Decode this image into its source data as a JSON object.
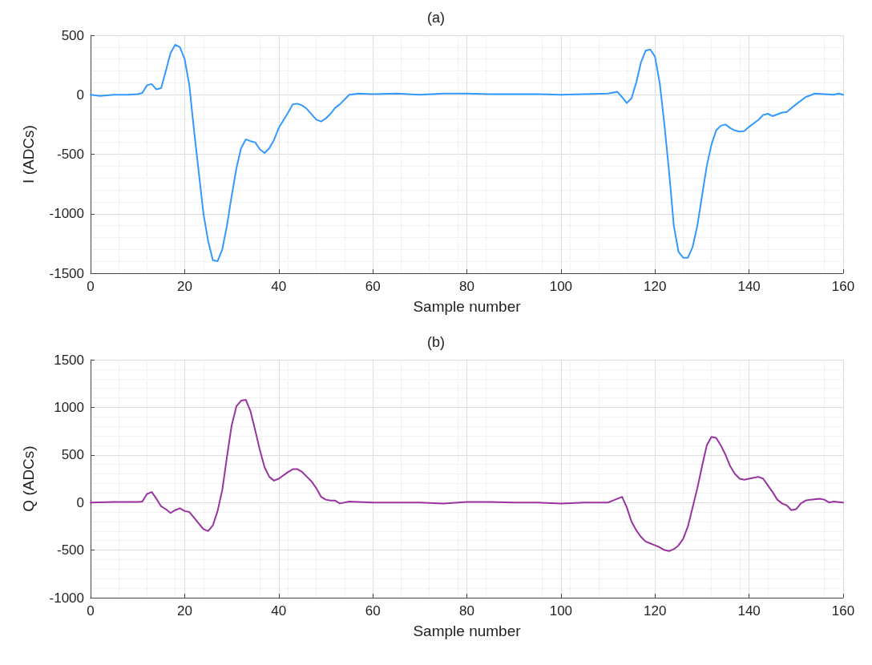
{
  "chart_data": [
    {
      "type": "line",
      "title": "(a)",
      "xlabel": "Sample number",
      "ylabel": "I (ADCs)",
      "xlim": [
        0,
        160
      ],
      "ylim": [
        -1500,
        500
      ],
      "xticks": [
        0,
        20,
        40,
        60,
        80,
        100,
        120,
        140,
        160
      ],
      "yticks": [
        -1500,
        -1000,
        -500,
        0,
        500
      ],
      "grid": true,
      "marker": "none",
      "line_style": "solid",
      "series": [
        {
          "color": "#3399ff",
          "x": [
            0,
            2,
            5,
            8,
            10,
            11,
            12,
            13,
            14,
            15,
            16,
            17,
            18,
            19,
            20,
            21,
            22,
            23,
            24,
            25,
            26,
            27,
            28,
            29,
            30,
            31,
            32,
            33,
            34,
            35,
            36,
            37,
            38,
            39,
            40,
            42,
            43,
            44,
            45,
            46,
            48,
            49,
            50,
            51,
            52,
            53,
            55,
            57,
            60,
            65,
            70,
            75,
            80,
            85,
            90,
            95,
            100,
            105,
            110,
            112,
            113,
            114,
            115,
            116,
            117,
            118,
            119,
            120,
            121,
            122,
            123,
            124,
            125,
            126,
            127,
            128,
            129,
            130,
            131,
            132,
            133,
            134,
            135,
            136,
            137,
            138,
            139,
            140,
            142,
            143,
            144,
            145,
            146,
            147,
            148,
            150,
            152,
            154,
            156,
            158,
            159,
            160
          ],
          "values": [
            0,
            -10,
            0,
            0,
            5,
            15,
            80,
            90,
            45,
            55,
            200,
            350,
            420,
            400,
            300,
            80,
            -300,
            -650,
            -1000,
            -1230,
            -1390,
            -1400,
            -1300,
            -1100,
            -850,
            -620,
            -450,
            -375,
            -390,
            -400,
            -460,
            -490,
            -450,
            -380,
            -280,
            -150,
            -80,
            -75,
            -90,
            -120,
            -210,
            -225,
            -200,
            -160,
            -110,
            -80,
            0,
            10,
            5,
            10,
            0,
            10,
            10,
            5,
            5,
            5,
            0,
            5,
            10,
            25,
            -20,
            -70,
            -30,
            100,
            270,
            370,
            380,
            320,
            100,
            -250,
            -650,
            -1100,
            -1320,
            -1370,
            -1370,
            -1280,
            -1100,
            -850,
            -600,
            -420,
            -300,
            -260,
            -250,
            -280,
            -300,
            -310,
            -305,
            -270,
            -210,
            -170,
            -160,
            -180,
            -165,
            -150,
            -145,
            -80,
            -20,
            10,
            5,
            0,
            10,
            0
          ]
        }
      ]
    },
    {
      "type": "line",
      "title": "(b)",
      "xlabel": "Sample number",
      "ylabel": "Q (ADCs)",
      "xlim": [
        0,
        160
      ],
      "ylim": [
        -1000,
        1500
      ],
      "xticks": [
        0,
        20,
        40,
        60,
        80,
        100,
        120,
        140,
        160
      ],
      "yticks": [
        -1000,
        -500,
        0,
        500,
        1000,
        1500
      ],
      "grid": true,
      "marker": "none",
      "line_style": "solid",
      "series": [
        {
          "color": "#9933a0",
          "x": [
            0,
            5,
            10,
            11,
            12,
            13,
            14,
            15,
            16,
            17,
            18,
            19,
            20,
            21,
            22,
            23,
            24,
            25,
            26,
            27,
            28,
            29,
            30,
            31,
            32,
            33,
            34,
            35,
            36,
            37,
            38,
            39,
            40,
            42,
            43,
            44,
            45,
            46,
            47,
            48,
            49,
            50,
            51,
            52,
            53,
            55,
            60,
            65,
            70,
            75,
            80,
            85,
            90,
            95,
            100,
            105,
            110,
            111,
            113,
            114,
            115,
            116,
            117,
            118,
            119,
            120,
            121,
            122,
            123,
            124,
            125,
            126,
            127,
            128,
            129,
            130,
            131,
            132,
            133,
            134,
            135,
            136,
            137,
            138,
            139,
            140,
            141,
            142,
            143,
            144,
            145,
            146,
            147,
            148,
            149,
            150,
            151,
            152,
            153,
            155,
            156,
            157,
            158,
            160
          ],
          "values": [
            0,
            5,
            5,
            10,
            90,
            110,
            40,
            -40,
            -70,
            -110,
            -80,
            -60,
            -90,
            -100,
            -160,
            -220,
            -280,
            -300,
            -240,
            -90,
            130,
            480,
            810,
            1010,
            1070,
            1080,
            960,
            760,
            550,
            370,
            270,
            230,
            250,
            320,
            350,
            350,
            320,
            270,
            220,
            150,
            60,
            30,
            20,
            20,
            -10,
            10,
            0,
            0,
            0,
            -10,
            5,
            5,
            0,
            0,
            -10,
            0,
            0,
            20,
            60,
            -50,
            -200,
            -290,
            -360,
            -410,
            -430,
            -450,
            -470,
            -500,
            -510,
            -490,
            -450,
            -380,
            -250,
            -50,
            150,
            380,
            600,
            690,
            680,
            600,
            500,
            380,
            300,
            250,
            240,
            250,
            260,
            270,
            250,
            180,
            110,
            30,
            -10,
            -30,
            -80,
            -70,
            -10,
            20,
            30,
            40,
            30,
            0,
            10,
            0
          ]
        }
      ]
    }
  ]
}
